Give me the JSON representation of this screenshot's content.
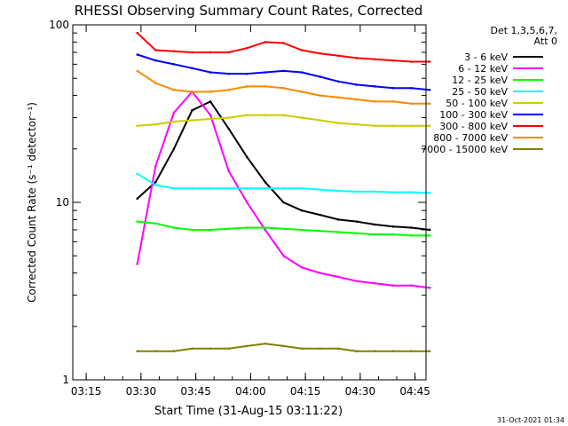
{
  "chart_data": {
    "type": "line",
    "title": "RHESSI Observing Summary Count Rates, Corrected",
    "xlabel": "Start Time (31-Aug-15 03:11:22)",
    "ylabel": "Corrected Count Rate (s⁻¹ detector⁻¹)",
    "yscale": "log",
    "ylim": [
      1,
      100
    ],
    "xlim": [
      "03:11",
      "04:48"
    ],
    "x_ticks": [
      "03:15",
      "03:30",
      "03:45",
      "04:00",
      "04:15",
      "04:30",
      "04:45"
    ],
    "y_ticks": [
      "1",
      "10",
      "100"
    ],
    "grid": false,
    "legend_position": "right",
    "legend_header": [
      "Det 1,3,5,6,7,",
      "Att 0"
    ],
    "footer_timestamp": "31-Oct-2021 01:34",
    "x_minutes_after_03_00": [
      29,
      34,
      39,
      44,
      49,
      54,
      59,
      64,
      69,
      74,
      79,
      84,
      89,
      94,
      99,
      104,
      109
    ],
    "series": [
      {
        "name": "3 - 6 keV",
        "color": "#000000",
        "values": [
          10.5,
          13,
          20,
          33,
          37,
          26,
          18,
          13,
          10,
          9,
          8.5,
          8,
          7.8,
          7.5,
          7.3,
          7.2,
          7.0
        ]
      },
      {
        "name": "6 - 12 keV",
        "color": "#ff00ff",
        "values": [
          4.5,
          16,
          32,
          42,
          31,
          15,
          10,
          7,
          5,
          4.3,
          4,
          3.8,
          3.6,
          3.5,
          3.4,
          3.4,
          3.3
        ]
      },
      {
        "name": "12 - 25 keV",
        "color": "#00ff00",
        "values": [
          7.8,
          7.6,
          7.2,
          7.0,
          7.0,
          7.1,
          7.2,
          7.2,
          7.1,
          7.0,
          6.9,
          6.8,
          6.7,
          6.6,
          6.6,
          6.5,
          6.5
        ]
      },
      {
        "name": "25 - 50 keV",
        "color": "#00ffff",
        "values": [
          14.5,
          12.5,
          12,
          12,
          12,
          12,
          12,
          12,
          12,
          12,
          11.8,
          11.6,
          11.5,
          11.5,
          11.4,
          11.4,
          11.3
        ]
      },
      {
        "name": "50 - 100 keV",
        "color": "#cccc00",
        "values": [
          27,
          27.5,
          28.5,
          29,
          29.5,
          30,
          31,
          31,
          31,
          30,
          29,
          28,
          27.5,
          27,
          27,
          27,
          27
        ]
      },
      {
        "name": "100 - 300 keV",
        "color": "#0000ff",
        "values": [
          68,
          63,
          60,
          57,
          54,
          53,
          53,
          54,
          55,
          54,
          51,
          48,
          46,
          45,
          44,
          44,
          43
        ]
      },
      {
        "name": "300 - 800 keV",
        "color": "#ff0000",
        "values": [
          90,
          72,
          71,
          70,
          70,
          70,
          74,
          80,
          79,
          72,
          69,
          67,
          65,
          64,
          63,
          62,
          62
        ]
      },
      {
        "name": "800 - 7000 keV",
        "color": "#ff8800",
        "values": [
          55,
          47,
          43,
          42,
          42,
          43,
          45,
          45,
          44,
          42,
          40,
          39,
          38,
          37,
          37,
          36,
          36
        ]
      },
      {
        "name": "7000 - 15000 keV",
        "color": "#808000",
        "values": [
          1.45,
          1.45,
          1.45,
          1.5,
          1.5,
          1.5,
          1.55,
          1.6,
          1.55,
          1.5,
          1.5,
          1.5,
          1.45,
          1.45,
          1.45,
          1.45,
          1.45
        ]
      }
    ]
  }
}
